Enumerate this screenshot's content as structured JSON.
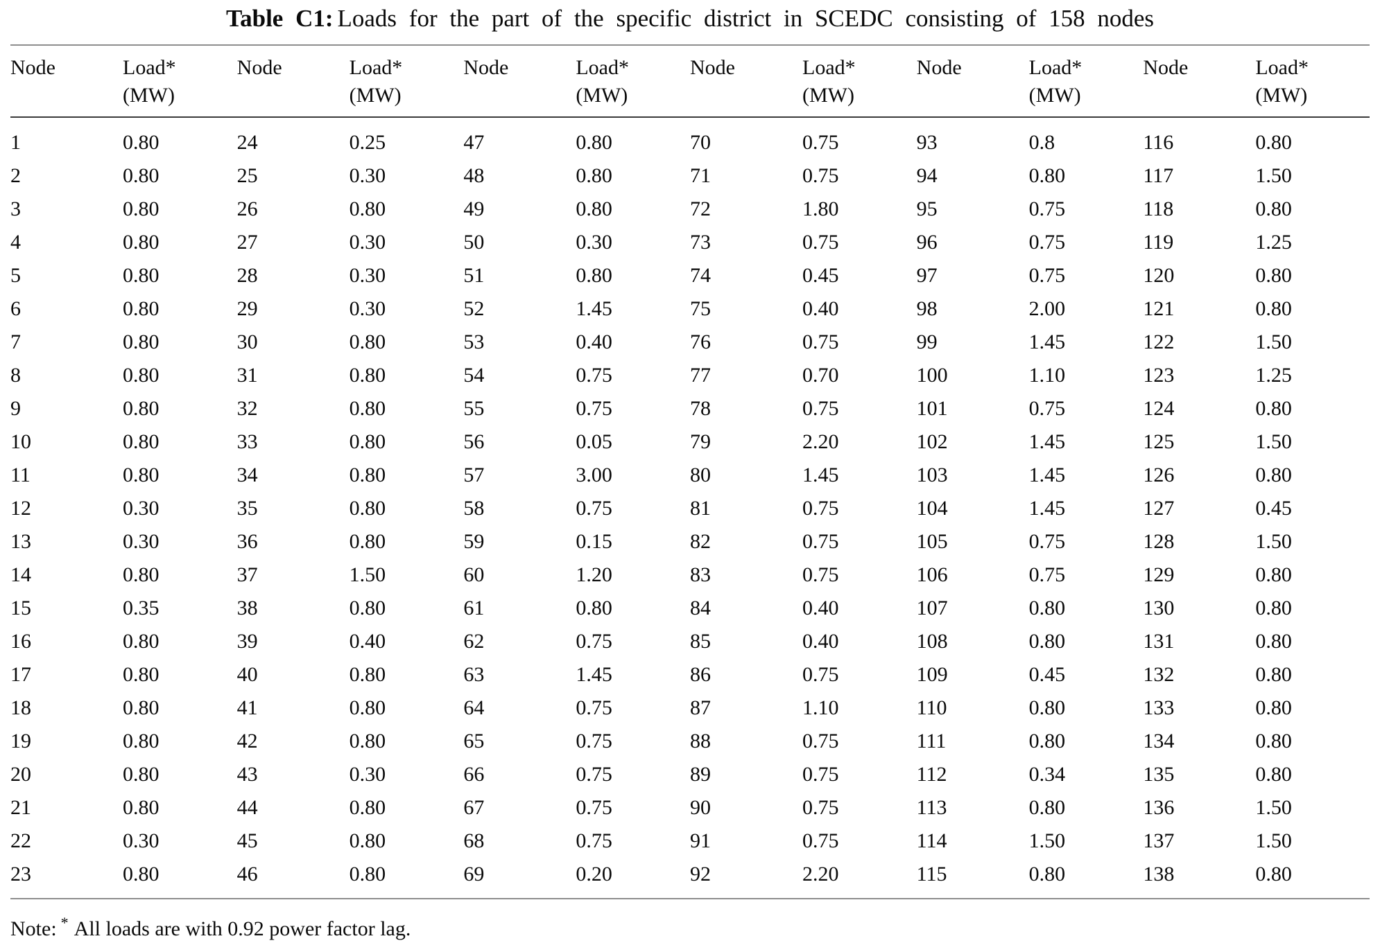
{
  "caption": {
    "label": "Table C1:",
    "text": "Loads for the part of the specific district in SCEDC consisting of 158 nodes"
  },
  "table": {
    "header": {
      "node": "Node",
      "load_line1": "Load*",
      "load_line2": "(MW)"
    },
    "groups": [
      {
        "rows": [
          {
            "node": "1",
            "load": "0.80"
          },
          {
            "node": "2",
            "load": "0.80"
          },
          {
            "node": "3",
            "load": "0.80"
          },
          {
            "node": "4",
            "load": "0.80"
          },
          {
            "node": "5",
            "load": "0.80"
          },
          {
            "node": "6",
            "load": "0.80"
          },
          {
            "node": "7",
            "load": "0.80"
          },
          {
            "node": "8",
            "load": "0.80"
          },
          {
            "node": "9",
            "load": "0.80"
          },
          {
            "node": "10",
            "load": "0.80"
          },
          {
            "node": "11",
            "load": "0.80"
          },
          {
            "node": "12",
            "load": "0.30"
          },
          {
            "node": "13",
            "load": "0.30"
          },
          {
            "node": "14",
            "load": "0.80"
          },
          {
            "node": "15",
            "load": "0.35"
          },
          {
            "node": "16",
            "load": "0.80"
          },
          {
            "node": "17",
            "load": "0.80"
          },
          {
            "node": "18",
            "load": "0.80"
          },
          {
            "node": "19",
            "load": "0.80"
          },
          {
            "node": "20",
            "load": "0.80"
          },
          {
            "node": "21",
            "load": "0.80"
          },
          {
            "node": "22",
            "load": "0.30"
          },
          {
            "node": "23",
            "load": "0.80"
          }
        ]
      },
      {
        "rows": [
          {
            "node": "24",
            "load": "0.25"
          },
          {
            "node": "25",
            "load": "0.30"
          },
          {
            "node": "26",
            "load": "0.80"
          },
          {
            "node": "27",
            "load": "0.30"
          },
          {
            "node": "28",
            "load": "0.30"
          },
          {
            "node": "29",
            "load": "0.30"
          },
          {
            "node": "30",
            "load": "0.80"
          },
          {
            "node": "31",
            "load": "0.80"
          },
          {
            "node": "32",
            "load": "0.80"
          },
          {
            "node": "33",
            "load": "0.80"
          },
          {
            "node": "34",
            "load": "0.80"
          },
          {
            "node": "35",
            "load": "0.80"
          },
          {
            "node": "36",
            "load": "0.80"
          },
          {
            "node": "37",
            "load": "1.50"
          },
          {
            "node": "38",
            "load": "0.80"
          },
          {
            "node": "39",
            "load": "0.40"
          },
          {
            "node": "40",
            "load": "0.80"
          },
          {
            "node": "41",
            "load": "0.80"
          },
          {
            "node": "42",
            "load": "0.80"
          },
          {
            "node": "43",
            "load": "0.30"
          },
          {
            "node": "44",
            "load": "0.80"
          },
          {
            "node": "45",
            "load": "0.80"
          },
          {
            "node": "46",
            "load": "0.80"
          }
        ]
      },
      {
        "rows": [
          {
            "node": "47",
            "load": "0.80"
          },
          {
            "node": "48",
            "load": "0.80"
          },
          {
            "node": "49",
            "load": "0.80"
          },
          {
            "node": "50",
            "load": "0.30"
          },
          {
            "node": "51",
            "load": "0.80"
          },
          {
            "node": "52",
            "load": "1.45"
          },
          {
            "node": "53",
            "load": "0.40"
          },
          {
            "node": "54",
            "load": "0.75"
          },
          {
            "node": "55",
            "load": "0.75"
          },
          {
            "node": "56",
            "load": "0.05"
          },
          {
            "node": "57",
            "load": "3.00"
          },
          {
            "node": "58",
            "load": "0.75"
          },
          {
            "node": "59",
            "load": "0.15"
          },
          {
            "node": "60",
            "load": "1.20"
          },
          {
            "node": "61",
            "load": "0.80"
          },
          {
            "node": "62",
            "load": "0.75"
          },
          {
            "node": "63",
            "load": "1.45"
          },
          {
            "node": "64",
            "load": "0.75"
          },
          {
            "node": "65",
            "load": "0.75"
          },
          {
            "node": "66",
            "load": "0.75"
          },
          {
            "node": "67",
            "load": "0.75"
          },
          {
            "node": "68",
            "load": "0.75"
          },
          {
            "node": "69",
            "load": "0.20"
          }
        ]
      },
      {
        "rows": [
          {
            "node": "70",
            "load": "0.75"
          },
          {
            "node": "71",
            "load": "0.75"
          },
          {
            "node": "72",
            "load": "1.80"
          },
          {
            "node": "73",
            "load": "0.75"
          },
          {
            "node": "74",
            "load": "0.45"
          },
          {
            "node": "75",
            "load": "0.40"
          },
          {
            "node": "76",
            "load": "0.75"
          },
          {
            "node": "77",
            "load": "0.70"
          },
          {
            "node": "78",
            "load": "0.75"
          },
          {
            "node": "79",
            "load": "2.20"
          },
          {
            "node": "80",
            "load": "1.45"
          },
          {
            "node": "81",
            "load": "0.75"
          },
          {
            "node": "82",
            "load": "0.75"
          },
          {
            "node": "83",
            "load": "0.75"
          },
          {
            "node": "84",
            "load": "0.40"
          },
          {
            "node": "85",
            "load": "0.40"
          },
          {
            "node": "86",
            "load": "0.75"
          },
          {
            "node": "87",
            "load": "1.10"
          },
          {
            "node": "88",
            "load": "0.75"
          },
          {
            "node": "89",
            "load": "0.75"
          },
          {
            "node": "90",
            "load": "0.75"
          },
          {
            "node": "91",
            "load": "0.75"
          },
          {
            "node": "92",
            "load": "2.20"
          }
        ]
      },
      {
        "rows": [
          {
            "node": "93",
            "load": "0.8"
          },
          {
            "node": "94",
            "load": "0.80"
          },
          {
            "node": "95",
            "load": "0.75"
          },
          {
            "node": "96",
            "load": "0.75"
          },
          {
            "node": "97",
            "load": "0.75"
          },
          {
            "node": "98",
            "load": "2.00"
          },
          {
            "node": "99",
            "load": "1.45"
          },
          {
            "node": "100",
            "load": "1.10"
          },
          {
            "node": "101",
            "load": "0.75"
          },
          {
            "node": "102",
            "load": "1.45"
          },
          {
            "node": "103",
            "load": "1.45"
          },
          {
            "node": "104",
            "load": "1.45"
          },
          {
            "node": "105",
            "load": "0.75"
          },
          {
            "node": "106",
            "load": "0.75"
          },
          {
            "node": "107",
            "load": "0.80"
          },
          {
            "node": "108",
            "load": "0.80"
          },
          {
            "node": "109",
            "load": "0.45"
          },
          {
            "node": "110",
            "load": "0.80"
          },
          {
            "node": "111",
            "load": "0.80"
          },
          {
            "node": "112",
            "load": "0.34"
          },
          {
            "node": "113",
            "load": "0.80"
          },
          {
            "node": "114",
            "load": "1.50"
          },
          {
            "node": "115",
            "load": "0.80"
          }
        ]
      },
      {
        "rows": [
          {
            "node": "116",
            "load": "0.80"
          },
          {
            "node": "117",
            "load": "1.50"
          },
          {
            "node": "118",
            "load": "0.80"
          },
          {
            "node": "119",
            "load": "1.25"
          },
          {
            "node": "120",
            "load": "0.80"
          },
          {
            "node": "121",
            "load": "0.80"
          },
          {
            "node": "122",
            "load": "1.50"
          },
          {
            "node": "123",
            "load": "1.25"
          },
          {
            "node": "124",
            "load": "0.80"
          },
          {
            "node": "125",
            "load": "1.50"
          },
          {
            "node": "126",
            "load": "0.80"
          },
          {
            "node": "127",
            "load": "0.45"
          },
          {
            "node": "128",
            "load": "1.50"
          },
          {
            "node": "129",
            "load": "0.80"
          },
          {
            "node": "130",
            "load": "0.80"
          },
          {
            "node": "131",
            "load": "0.80"
          },
          {
            "node": "132",
            "load": "0.80"
          },
          {
            "node": "133",
            "load": "0.80"
          },
          {
            "node": "134",
            "load": "0.80"
          },
          {
            "node": "135",
            "load": "0.80"
          },
          {
            "node": "136",
            "load": "1.50"
          },
          {
            "node": "137",
            "load": "1.50"
          },
          {
            "node": "138",
            "load": "0.80"
          }
        ]
      }
    ]
  },
  "note": {
    "prefix": "Note:",
    "star": "*",
    "text": "All loads are with 0.92 power factor lag."
  }
}
